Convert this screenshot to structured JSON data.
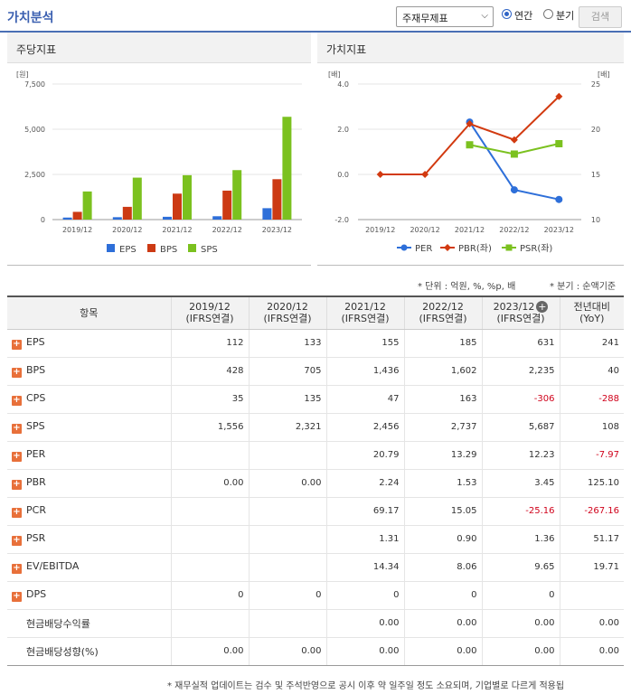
{
  "header": {
    "title": "가치분석",
    "select_value": "주재무제표",
    "radio_annual": "연간",
    "radio_quarter": "분기",
    "search_label": "검색"
  },
  "left_panel": {
    "title": "주당지표",
    "unit": "[원]"
  },
  "right_panel": {
    "title": "가치지표",
    "unit_left": "[배]",
    "unit_right": "[배]"
  },
  "notes": {
    "unit_note": "* 단위 : 억원, %, %p, 배",
    "quarter_note": "* 분기 : 순액기준"
  },
  "chart_data": [
    {
      "type": "bar",
      "categories": [
        "2019/12",
        "2020/12",
        "2021/12",
        "2022/12",
        "2023/12"
      ],
      "series": [
        {
          "name": "EPS",
          "color": "#2e6fd9",
          "values": [
            112,
            133,
            155,
            185,
            631
          ]
        },
        {
          "name": "BPS",
          "color": "#cc3a14",
          "values": [
            428,
            705,
            1436,
            1602,
            2235
          ]
        },
        {
          "name": "SPS",
          "color": "#7bc11f",
          "values": [
            1556,
            2321,
            2456,
            2737,
            5687
          ]
        }
      ],
      "ylim": [
        0,
        7500
      ],
      "yticks": [
        "0",
        "2,500",
        "5,000",
        "7,500"
      ],
      "legend": "bottom"
    },
    {
      "type": "line",
      "categories": [
        "2019/12",
        "2020/12",
        "2021/12",
        "2022/12",
        "2023/12"
      ],
      "left_axis": {
        "ylim": [
          -2,
          4
        ],
        "yticks": [
          "-2.0",
          "0.0",
          "2.0",
          "4.0"
        ]
      },
      "right_axis": {
        "ylim": [
          10,
          25
        ],
        "yticks": [
          "10",
          "15",
          "20",
          "25"
        ]
      },
      "series": [
        {
          "name": "PER",
          "color": "#2e6fd9",
          "axis": "right",
          "marker": "circle",
          "values": [
            null,
            null,
            20.79,
            13.29,
            12.23
          ]
        },
        {
          "name": "PBR(좌)",
          "color": "#d23a10",
          "axis": "left",
          "marker": "diamond",
          "values": [
            0.0,
            0.0,
            2.24,
            1.53,
            3.45
          ]
        },
        {
          "name": "PSR(좌)",
          "color": "#7bc11f",
          "axis": "left",
          "marker": "square",
          "values": [
            null,
            null,
            1.31,
            0.9,
            1.36
          ]
        }
      ],
      "legend": "bottom"
    }
  ],
  "table": {
    "item_header": "항목",
    "columns": [
      {
        "period": "2019/12",
        "basis": "(IFRS연결)"
      },
      {
        "period": "2020/12",
        "basis": "(IFRS연결)"
      },
      {
        "period": "2021/12",
        "basis": "(IFRS연결)"
      },
      {
        "period": "2022/12",
        "basis": "(IFRS연결)"
      },
      {
        "period": "2023/12",
        "basis": "(IFRS연결)"
      }
    ],
    "yoy_header": [
      "전년대비",
      "(YoY)"
    ],
    "rows": [
      {
        "label": "EPS",
        "expandable": true,
        "values": [
          "112",
          "133",
          "155",
          "185",
          "631",
          "241"
        ]
      },
      {
        "label": "BPS",
        "expandable": true,
        "values": [
          "428",
          "705",
          "1,436",
          "1,602",
          "2,235",
          "40"
        ]
      },
      {
        "label": "CPS",
        "expandable": true,
        "values": [
          "35",
          "135",
          "47",
          "163",
          "-306",
          "-288"
        ]
      },
      {
        "label": "SPS",
        "expandable": true,
        "values": [
          "1,556",
          "2,321",
          "2,456",
          "2,737",
          "5,687",
          "108"
        ]
      },
      {
        "label": "PER",
        "expandable": true,
        "values": [
          "",
          "",
          "20.79",
          "13.29",
          "12.23",
          "-7.97"
        ]
      },
      {
        "label": "PBR",
        "expandable": true,
        "values": [
          "0.00",
          "0.00",
          "2.24",
          "1.53",
          "3.45",
          "125.10"
        ]
      },
      {
        "label": "PCR",
        "expandable": true,
        "values": [
          "",
          "",
          "69.17",
          "15.05",
          "-25.16",
          "-267.16"
        ]
      },
      {
        "label": "PSR",
        "expandable": true,
        "values": [
          "",
          "",
          "1.31",
          "0.90",
          "1.36",
          "51.17"
        ]
      },
      {
        "label": "EV/EBITDA",
        "expandable": true,
        "values": [
          "",
          "",
          "14.34",
          "8.06",
          "9.65",
          "19.71"
        ]
      },
      {
        "label": "DPS",
        "expandable": true,
        "values": [
          "0",
          "0",
          "0",
          "0",
          "0",
          ""
        ]
      },
      {
        "label": "현금배당수익률",
        "expandable": false,
        "values": [
          "",
          "",
          "0.00",
          "0.00",
          "0.00",
          "0.00"
        ]
      },
      {
        "label": "현금배당성향(%)",
        "expandable": false,
        "values": [
          "0.00",
          "0.00",
          "0.00",
          "0.00",
          "0.00",
          "0.00"
        ]
      }
    ]
  },
  "footer": "* 재무실적 업데이트는 검수 및 주석반영으로 공시 이후 약 일주일 정도 소요되며, 기업별로 다르게 적용됩"
}
